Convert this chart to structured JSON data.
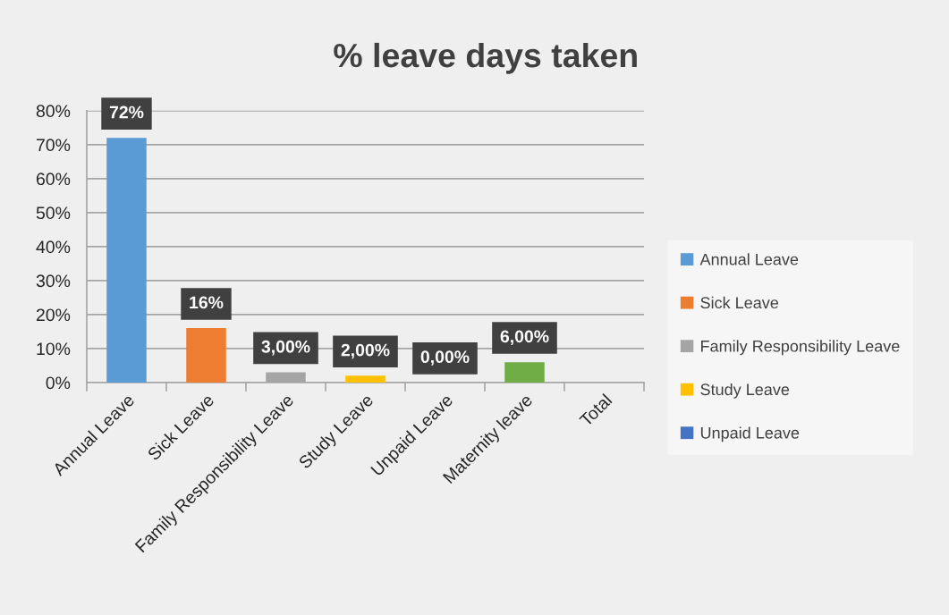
{
  "chart_data": {
    "type": "bar",
    "title": "% leave days taken",
    "categories": [
      "Annual Leave",
      "Sick Leave",
      "Family Responsibility Leave",
      "Study Leave",
      "Unpaid Leave",
      "Maternity leave",
      "Total"
    ],
    "series": [
      {
        "name": "Annual Leave",
        "color": "#5b9bd5",
        "values": [
          72,
          null,
          null,
          null,
          null,
          null,
          null
        ],
        "value_labels": [
          "72%",
          null,
          null,
          null,
          null,
          null,
          null
        ]
      },
      {
        "name": "Sick Leave",
        "color": "#ed7d31",
        "values": [
          null,
          16,
          null,
          null,
          null,
          null,
          null
        ],
        "value_labels": [
          null,
          "16%",
          null,
          null,
          null,
          null,
          null
        ]
      },
      {
        "name": "Family Responsibility Leave",
        "color": "#a5a5a5",
        "values": [
          null,
          null,
          3,
          null,
          null,
          null,
          null
        ],
        "value_labels": [
          null,
          null,
          "3,00%",
          null,
          null,
          null,
          null
        ]
      },
      {
        "name": "Study Leave",
        "color": "#ffc000",
        "values": [
          null,
          null,
          null,
          2,
          null,
          null,
          null
        ],
        "value_labels": [
          null,
          null,
          null,
          "2,00%",
          null,
          null,
          null
        ]
      },
      {
        "name": "Unpaid Leave",
        "color": "#4472c4",
        "values": [
          null,
          null,
          null,
          null,
          0,
          null,
          null
        ],
        "value_labels": [
          null,
          null,
          null,
          null,
          "0,00%",
          null,
          null
        ]
      },
      {
        "color": "#70ad47",
        "values": [
          null,
          null,
          null,
          null,
          null,
          6,
          null
        ],
        "value_labels": [
          null,
          null,
          null,
          null,
          null,
          "6,00%",
          null
        ]
      }
    ],
    "ylim": [
      0,
      80
    ],
    "yticks": [
      {
        "value": 0,
        "label": "0%"
      },
      {
        "value": 10,
        "label": "10%"
      },
      {
        "value": 20,
        "label": "20%"
      },
      {
        "value": 30,
        "label": "30%"
      },
      {
        "value": 40,
        "label": "40%"
      },
      {
        "value": 50,
        "label": "50%"
      },
      {
        "value": 60,
        "label": "60%"
      },
      {
        "value": 70,
        "label": "70%"
      },
      {
        "value": 80,
        "label": "80%"
      }
    ],
    "grid": "y",
    "legend": "right"
  }
}
